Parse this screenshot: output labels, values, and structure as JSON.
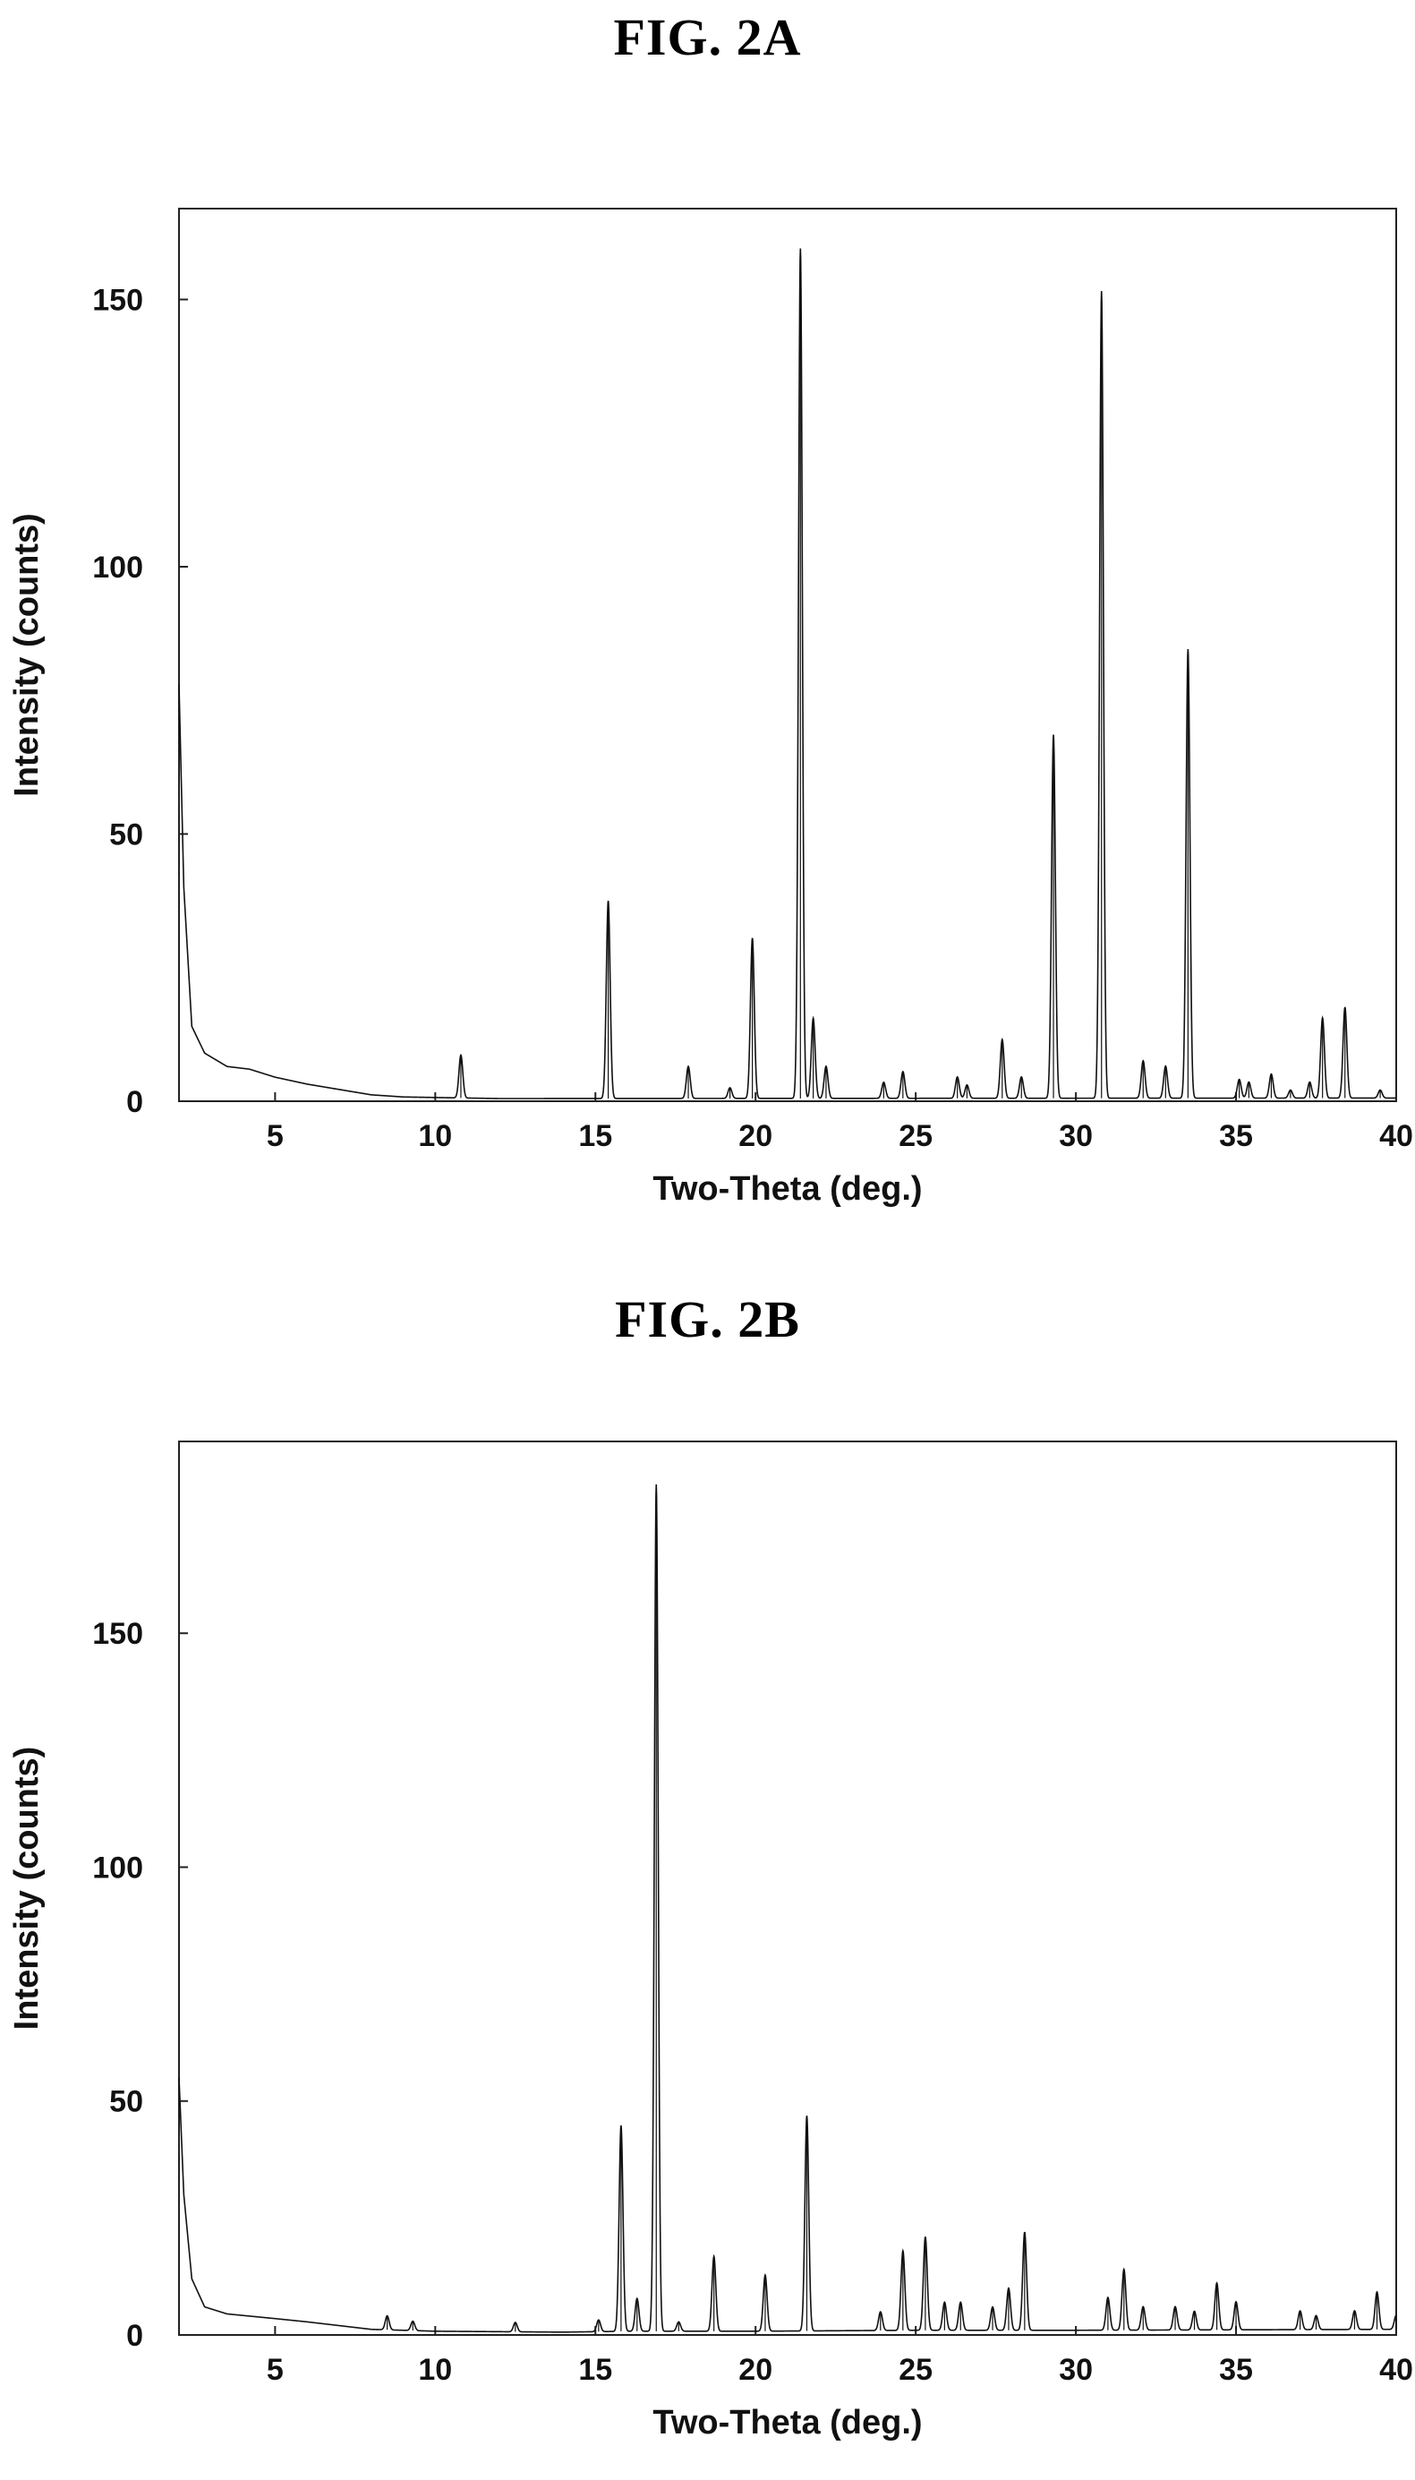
{
  "chart_data": [
    {
      "type": "line",
      "title": "FIG. 2A",
      "xlabel": "Two-Theta (deg.)",
      "ylabel": "Intensity (counts)",
      "xlim": [
        2,
        40
      ],
      "ylim": [
        0,
        167
      ],
      "xticks": [
        5,
        10,
        15,
        20,
        25,
        30,
        35,
        40
      ],
      "yticks": [
        0,
        50,
        100,
        150
      ],
      "background": [
        [
          2,
          78
        ],
        [
          2.15,
          40
        ],
        [
          2.4,
          14
        ],
        [
          2.8,
          9
        ],
        [
          3.5,
          6.5
        ],
        [
          4.2,
          6
        ],
        [
          5,
          4.5
        ],
        [
          6,
          3.2
        ],
        [
          7,
          2.2
        ],
        [
          8,
          1.2
        ],
        [
          9,
          0.8
        ],
        [
          12,
          0.5
        ],
        [
          40,
          0.6
        ]
      ],
      "peaks": [
        {
          "x": 10.8,
          "y": 8
        },
        {
          "x": 15.4,
          "y": 37
        },
        {
          "x": 17.9,
          "y": 6
        },
        {
          "x": 19.2,
          "y": 2
        },
        {
          "x": 19.9,
          "y": 30
        },
        {
          "x": 21.4,
          "y": 159
        },
        {
          "x": 21.8,
          "y": 15
        },
        {
          "x": 22.2,
          "y": 6
        },
        {
          "x": 24.0,
          "y": 3
        },
        {
          "x": 24.6,
          "y": 5
        },
        {
          "x": 26.3,
          "y": 4
        },
        {
          "x": 26.6,
          "y": 2.5
        },
        {
          "x": 27.7,
          "y": 11
        },
        {
          "x": 28.3,
          "y": 4
        },
        {
          "x": 29.3,
          "y": 68
        },
        {
          "x": 30.8,
          "y": 151
        },
        {
          "x": 32.1,
          "y": 7
        },
        {
          "x": 32.8,
          "y": 6
        },
        {
          "x": 33.5,
          "y": 84
        },
        {
          "x": 35.1,
          "y": 3.5
        },
        {
          "x": 35.4,
          "y": 3
        },
        {
          "x": 36.1,
          "y": 4.5
        },
        {
          "x": 36.7,
          "y": 1.5
        },
        {
          "x": 37.3,
          "y": 3
        },
        {
          "x": 37.7,
          "y": 15
        },
        {
          "x": 38.4,
          "y": 17
        },
        {
          "x": 39.5,
          "y": 1.5
        }
      ]
    },
    {
      "type": "line",
      "title": "FIG. 2B",
      "xlabel": "Two-Theta (deg.)",
      "ylabel": "Intensity (counts)",
      "xlim": [
        2,
        40
      ],
      "ylim": [
        0,
        191
      ],
      "xticks": [
        5,
        10,
        15,
        20,
        25,
        30,
        35,
        40
      ],
      "yticks": [
        0,
        50,
        100,
        150
      ],
      "background": [
        [
          2,
          55
        ],
        [
          2.15,
          30
        ],
        [
          2.4,
          12
        ],
        [
          2.8,
          6
        ],
        [
          3.5,
          4.5
        ],
        [
          5,
          3.5
        ],
        [
          6,
          2.8
        ],
        [
          7,
          2
        ],
        [
          8,
          1.2
        ],
        [
          10,
          0.8
        ],
        [
          14,
          0.6
        ],
        [
          16,
          0.8
        ],
        [
          20,
          0.8
        ],
        [
          25,
          1
        ],
        [
          30,
          1
        ],
        [
          40,
          1.2
        ]
      ],
      "peaks": [
        {
          "x": 8.5,
          "y": 3
        },
        {
          "x": 9.3,
          "y": 2
        },
        {
          "x": 12.5,
          "y": 2
        },
        {
          "x": 15.1,
          "y": 2.5
        },
        {
          "x": 15.8,
          "y": 44
        },
        {
          "x": 16.3,
          "y": 7
        },
        {
          "x": 16.9,
          "y": 181
        },
        {
          "x": 17.6,
          "y": 2
        },
        {
          "x": 18.7,
          "y": 16
        },
        {
          "x": 20.3,
          "y": 12
        },
        {
          "x": 21.6,
          "y": 46
        },
        {
          "x": 23.9,
          "y": 4
        },
        {
          "x": 24.6,
          "y": 17
        },
        {
          "x": 25.3,
          "y": 20
        },
        {
          "x": 25.9,
          "y": 6
        },
        {
          "x": 26.4,
          "y": 6
        },
        {
          "x": 27.4,
          "y": 5
        },
        {
          "x": 27.9,
          "y": 9
        },
        {
          "x": 28.4,
          "y": 21
        },
        {
          "x": 31.0,
          "y": 7
        },
        {
          "x": 31.5,
          "y": 13
        },
        {
          "x": 32.1,
          "y": 5
        },
        {
          "x": 33.1,
          "y": 5
        },
        {
          "x": 33.7,
          "y": 4
        },
        {
          "x": 34.4,
          "y": 10
        },
        {
          "x": 35.0,
          "y": 6
        },
        {
          "x": 37.0,
          "y": 4
        },
        {
          "x": 37.5,
          "y": 3
        },
        {
          "x": 38.7,
          "y": 4
        },
        {
          "x": 39.4,
          "y": 8
        },
        {
          "x": 40.0,
          "y": 3
        }
      ]
    }
  ]
}
